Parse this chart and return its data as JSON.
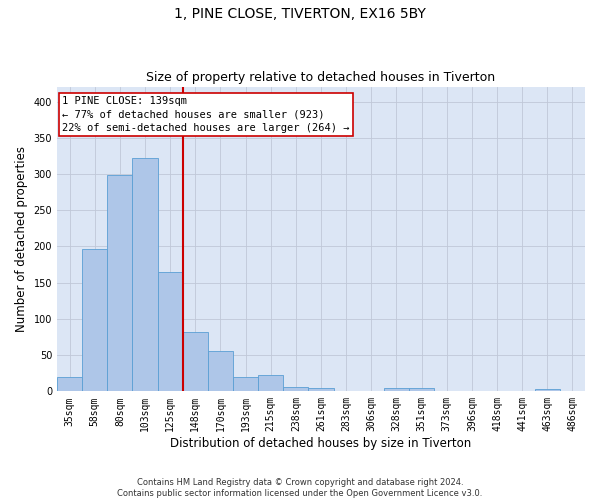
{
  "title1": "1, PINE CLOSE, TIVERTON, EX16 5BY",
  "title2": "Size of property relative to detached houses in Tiverton",
  "xlabel": "Distribution of detached houses by size in Tiverton",
  "ylabel": "Number of detached properties",
  "categories": [
    "35sqm",
    "58sqm",
    "80sqm",
    "103sqm",
    "125sqm",
    "148sqm",
    "170sqm",
    "193sqm",
    "215sqm",
    "238sqm",
    "261sqm",
    "283sqm",
    "306sqm",
    "328sqm",
    "351sqm",
    "373sqm",
    "396sqm",
    "418sqm",
    "441sqm",
    "463sqm",
    "486sqm"
  ],
  "values": [
    20,
    197,
    299,
    322,
    165,
    82,
    55,
    20,
    22,
    6,
    5,
    0,
    0,
    5,
    4,
    0,
    0,
    0,
    0,
    3,
    0
  ],
  "bar_color": "#aec6e8",
  "bar_edge_color": "#5a9fd4",
  "property_line_x": 4.5,
  "annotation_text": "1 PINE CLOSE: 139sqm\n← 77% of detached houses are smaller (923)\n22% of semi-detached houses are larger (264) →",
  "annotation_box_color": "#ffffff",
  "annotation_box_edge": "#cc0000",
  "vline_color": "#cc0000",
  "grid_color": "#c0c8d8",
  "background_color": "#dce6f5",
  "footnote": "Contains HM Land Registry data © Crown copyright and database right 2024.\nContains public sector information licensed under the Open Government Licence v3.0.",
  "ylim": [
    0,
    420
  ],
  "yticks": [
    0,
    50,
    100,
    150,
    200,
    250,
    300,
    350,
    400
  ],
  "title1_fontsize": 10,
  "title2_fontsize": 9,
  "xlabel_fontsize": 8.5,
  "ylabel_fontsize": 8.5,
  "tick_fontsize": 7,
  "annot_fontsize": 7.5,
  "footnote_fontsize": 6
}
